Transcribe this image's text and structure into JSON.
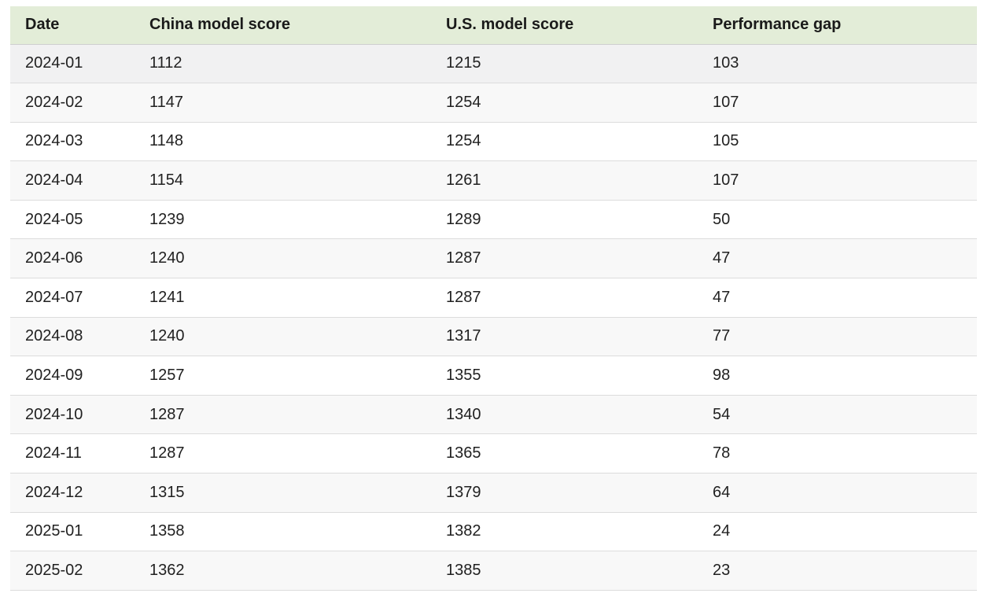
{
  "colors": {
    "header_bg": "#e3edd8",
    "first_row_highlight_bg": "#f1f1f2",
    "alt_row_bg": "#f8f8f8",
    "row_bg": "#ffffff",
    "border": "#dcdcdc",
    "header_text": "#1a1a1a",
    "body_text": "#212121"
  },
  "chart_data": {
    "type": "table",
    "title": "",
    "columns": [
      "Date",
      "China model score",
      "U.S. model score",
      "Performance gap"
    ],
    "rows": [
      [
        "2024-01",
        "1112",
        "1215",
        "103"
      ],
      [
        "2024-02",
        "1147",
        "1254",
        "107"
      ],
      [
        "2024-03",
        "1148",
        "1254",
        "105"
      ],
      [
        "2024-04",
        "1154",
        "1261",
        "107"
      ],
      [
        "2024-05",
        "1239",
        "1289",
        "50"
      ],
      [
        "2024-06",
        "1240",
        "1287",
        "47"
      ],
      [
        "2024-07",
        "1241",
        "1287",
        "47"
      ],
      [
        "2024-08",
        "1240",
        "1317",
        "77"
      ],
      [
        "2024-09",
        "1257",
        "1355",
        "98"
      ],
      [
        "2024-10",
        "1287",
        "1340",
        "54"
      ],
      [
        "2024-11",
        "1287",
        "1365",
        "78"
      ],
      [
        "2024-12",
        "1315",
        "1379",
        "64"
      ],
      [
        "2025-01",
        "1358",
        "1382",
        "24"
      ],
      [
        "2025-02",
        "1362",
        "1385",
        "23"
      ]
    ],
    "highlighted_row_index": 0,
    "layout": {
      "zebra_striping": true,
      "header_style": "light-green-band",
      "grid": "horizontal-separators-only"
    }
  }
}
